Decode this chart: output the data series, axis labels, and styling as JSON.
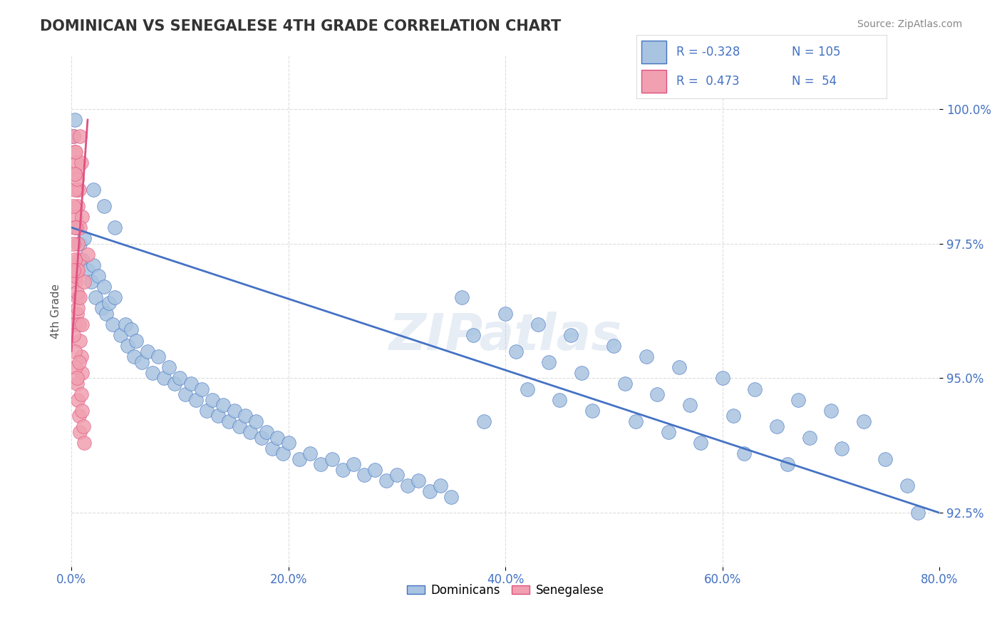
{
  "title": "DOMINICAN VS SENEGALESE 4TH GRADE CORRELATION CHART",
  "source_text": "Source: ZipAtlas.com",
  "xlabel": "",
  "ylabel": "4th Grade",
  "xlim": [
    0.0,
    80.0
  ],
  "ylim": [
    91.5,
    101.0
  ],
  "yticks": [
    92.5,
    95.0,
    97.5,
    100.0
  ],
  "xticks": [
    0.0,
    20.0,
    40.0,
    60.0,
    80.0
  ],
  "blue_color": "#a8c4e0",
  "pink_color": "#f0a0b0",
  "blue_line_color": "#4472c4",
  "pink_line_color": "#e05080",
  "legend_blue_r": "-0.328",
  "legend_blue_n": "105",
  "legend_pink_r": "0.473",
  "legend_pink_n": "54",
  "watermark": "ZIPatlas",
  "blue_dots": [
    [
      0.5,
      97.8
    ],
    [
      0.8,
      97.5
    ],
    [
      1.0,
      97.2
    ],
    [
      1.2,
      97.6
    ],
    [
      1.5,
      97.0
    ],
    [
      1.8,
      96.8
    ],
    [
      2.0,
      97.1
    ],
    [
      2.2,
      96.5
    ],
    [
      2.5,
      96.9
    ],
    [
      2.8,
      96.3
    ],
    [
      3.0,
      96.7
    ],
    [
      3.2,
      96.2
    ],
    [
      3.5,
      96.4
    ],
    [
      3.8,
      96.0
    ],
    [
      4.0,
      96.5
    ],
    [
      4.5,
      95.8
    ],
    [
      5.0,
      96.0
    ],
    [
      5.2,
      95.6
    ],
    [
      5.5,
      95.9
    ],
    [
      5.8,
      95.4
    ],
    [
      6.0,
      95.7
    ],
    [
      6.5,
      95.3
    ],
    [
      7.0,
      95.5
    ],
    [
      7.5,
      95.1
    ],
    [
      8.0,
      95.4
    ],
    [
      8.5,
      95.0
    ],
    [
      9.0,
      95.2
    ],
    [
      9.5,
      94.9
    ],
    [
      10.0,
      95.0
    ],
    [
      10.5,
      94.7
    ],
    [
      11.0,
      94.9
    ],
    [
      11.5,
      94.6
    ],
    [
      12.0,
      94.8
    ],
    [
      12.5,
      94.4
    ],
    [
      13.0,
      94.6
    ],
    [
      13.5,
      94.3
    ],
    [
      14.0,
      94.5
    ],
    [
      14.5,
      94.2
    ],
    [
      15.0,
      94.4
    ],
    [
      15.5,
      94.1
    ],
    [
      16.0,
      94.3
    ],
    [
      16.5,
      94.0
    ],
    [
      17.0,
      94.2
    ],
    [
      17.5,
      93.9
    ],
    [
      18.0,
      94.0
    ],
    [
      18.5,
      93.7
    ],
    [
      19.0,
      93.9
    ],
    [
      19.5,
      93.6
    ],
    [
      20.0,
      93.8
    ],
    [
      21.0,
      93.5
    ],
    [
      22.0,
      93.6
    ],
    [
      23.0,
      93.4
    ],
    [
      24.0,
      93.5
    ],
    [
      25.0,
      93.3
    ],
    [
      26.0,
      93.4
    ],
    [
      27.0,
      93.2
    ],
    [
      28.0,
      93.3
    ],
    [
      29.0,
      93.1
    ],
    [
      30.0,
      93.2
    ],
    [
      31.0,
      93.0
    ],
    [
      32.0,
      93.1
    ],
    [
      33.0,
      92.9
    ],
    [
      34.0,
      93.0
    ],
    [
      35.0,
      92.8
    ],
    [
      36.0,
      96.5
    ],
    [
      37.0,
      95.8
    ],
    [
      38.0,
      94.2
    ],
    [
      40.0,
      96.2
    ],
    [
      41.0,
      95.5
    ],
    [
      42.0,
      94.8
    ],
    [
      43.0,
      96.0
    ],
    [
      44.0,
      95.3
    ],
    [
      45.0,
      94.6
    ],
    [
      46.0,
      95.8
    ],
    [
      47.0,
      95.1
    ],
    [
      48.0,
      94.4
    ],
    [
      50.0,
      95.6
    ],
    [
      51.0,
      94.9
    ],
    [
      52.0,
      94.2
    ],
    [
      53.0,
      95.4
    ],
    [
      54.0,
      94.7
    ],
    [
      55.0,
      94.0
    ],
    [
      56.0,
      95.2
    ],
    [
      57.0,
      94.5
    ],
    [
      58.0,
      93.8
    ],
    [
      60.0,
      95.0
    ],
    [
      61.0,
      94.3
    ],
    [
      62.0,
      93.6
    ],
    [
      63.0,
      94.8
    ],
    [
      65.0,
      94.1
    ],
    [
      66.0,
      93.4
    ],
    [
      67.0,
      94.6
    ],
    [
      68.0,
      93.9
    ],
    [
      70.0,
      94.4
    ],
    [
      71.0,
      93.7
    ],
    [
      73.0,
      94.2
    ],
    [
      75.0,
      93.5
    ],
    [
      77.0,
      93.0
    ],
    [
      78.0,
      92.5
    ],
    [
      2.0,
      98.5
    ],
    [
      3.0,
      98.2
    ],
    [
      4.0,
      97.8
    ],
    [
      0.3,
      99.8
    ],
    [
      0.2,
      99.5
    ]
  ],
  "pink_dots": [
    [
      0.2,
      99.5
    ],
    [
      0.3,
      99.2
    ],
    [
      0.4,
      98.8
    ],
    [
      0.5,
      98.5
    ],
    [
      0.6,
      98.2
    ],
    [
      0.5,
      99.0
    ],
    [
      0.4,
      98.0
    ],
    [
      0.3,
      97.8
    ],
    [
      0.6,
      97.5
    ],
    [
      0.7,
      97.2
    ],
    [
      0.5,
      97.0
    ],
    [
      0.4,
      96.8
    ],
    [
      0.6,
      96.5
    ],
    [
      0.5,
      96.2
    ],
    [
      0.3,
      96.0
    ],
    [
      0.8,
      99.5
    ],
    [
      0.9,
      99.0
    ],
    [
      0.7,
      98.5
    ],
    [
      1.0,
      98.0
    ],
    [
      0.8,
      97.8
    ],
    [
      0.2,
      97.5
    ],
    [
      0.3,
      97.2
    ],
    [
      0.4,
      96.9
    ],
    [
      0.5,
      96.6
    ],
    [
      0.6,
      96.3
    ],
    [
      0.7,
      96.0
    ],
    [
      0.8,
      95.7
    ],
    [
      0.9,
      95.4
    ],
    [
      1.0,
      95.1
    ],
    [
      0.2,
      95.8
    ],
    [
      0.3,
      95.5
    ],
    [
      0.4,
      95.2
    ],
    [
      0.5,
      94.9
    ],
    [
      0.6,
      94.6
    ],
    [
      0.7,
      94.3
    ],
    [
      0.8,
      94.0
    ],
    [
      0.9,
      94.7
    ],
    [
      1.0,
      94.4
    ],
    [
      1.1,
      94.1
    ],
    [
      1.2,
      93.8
    ],
    [
      0.2,
      98.2
    ],
    [
      0.3,
      98.5
    ],
    [
      0.4,
      99.2
    ],
    [
      0.5,
      98.7
    ],
    [
      1.5,
      97.3
    ],
    [
      1.2,
      96.8
    ],
    [
      0.8,
      96.5
    ],
    [
      0.6,
      97.0
    ],
    [
      0.4,
      97.8
    ],
    [
      0.3,
      98.8
    ],
    [
      1.0,
      96.0
    ],
    [
      0.7,
      95.3
    ],
    [
      0.2,
      97.0
    ],
    [
      0.5,
      95.0
    ]
  ],
  "blue_trend_x": [
    0.0,
    80.0
  ],
  "blue_trend_y": [
    97.8,
    92.5
  ],
  "pink_trend_x": [
    0.0,
    1.5
  ],
  "pink_trend_y": [
    95.5,
    99.8
  ],
  "background_color": "#ffffff",
  "grid_color": "#dddddd"
}
